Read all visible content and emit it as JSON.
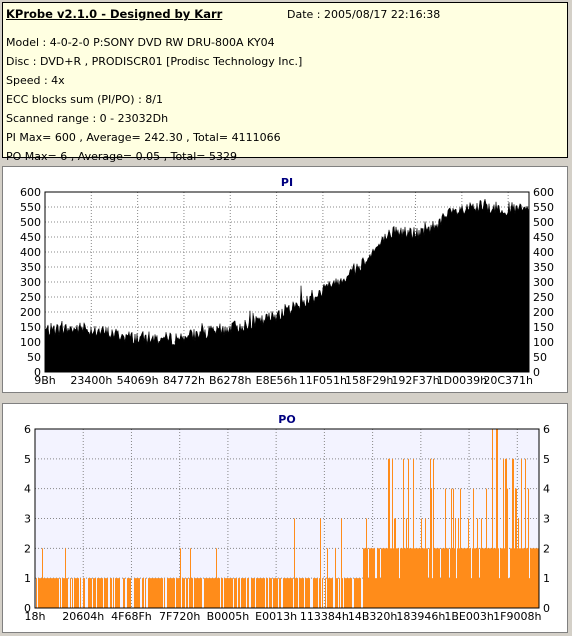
{
  "header": {
    "title": "KProbe v2.1.0 - Designed by Karr",
    "date": "Date : 2005/08/17 22:16:38",
    "lines": [
      "Model : 4-0-2-0 P:SONY    DVD RW DRU-800A  KY04",
      "Disc : DVD+R , PRODISCR01 [Prodisc Technology Inc.]",
      "Speed : 4x",
      "ECC blocks sum (PI/PO) : 8/1",
      "Scanned range : 0 - 23032Dh",
      "PI Max= 600 , Average= 242.30 , Total= 4111066",
      "PO Max= 6 , Average= 0.05 , Total= 5329"
    ]
  },
  "chart_data": [
    {
      "type": "area",
      "title": "PI",
      "ylim": [
        0,
        600
      ],
      "yticks": [
        0,
        50,
        100,
        150,
        200,
        250,
        300,
        350,
        400,
        450,
        500,
        550,
        600
      ],
      "xticklabels": [
        "9Bh",
        "23400h",
        "54069h",
        "84772h",
        "B6278h",
        "E8E56h",
        "11F051h",
        "158F29h",
        "192F37h",
        "1D0039h",
        "20C371h"
      ],
      "grid": true,
      "color": "#000000",
      "profile": {
        "x": [
          0,
          0.08,
          0.18,
          0.26,
          0.35,
          0.45,
          0.55,
          0.64,
          0.72,
          0.78,
          0.84,
          0.9,
          1.0
        ],
        "y": [
          140,
          145,
          115,
          110,
          135,
          170,
          245,
          340,
          470,
          460,
          530,
          550,
          540
        ]
      }
    },
    {
      "type": "bar",
      "title": "PO",
      "ylim": [
        0,
        6
      ],
      "yticks": [
        0,
        1,
        2,
        3,
        4,
        5,
        6
      ],
      "xticklabels": [
        "18h",
        "20604h",
        "4F68Fh",
        "7F720h",
        "B0005h",
        "E0013h",
        "113384h",
        "14B320h",
        "183946h",
        "1BE003h",
        "1F9008h"
      ],
      "grid": true,
      "color": "#ff8c1a",
      "max": 6,
      "average": 0.05
    }
  ]
}
